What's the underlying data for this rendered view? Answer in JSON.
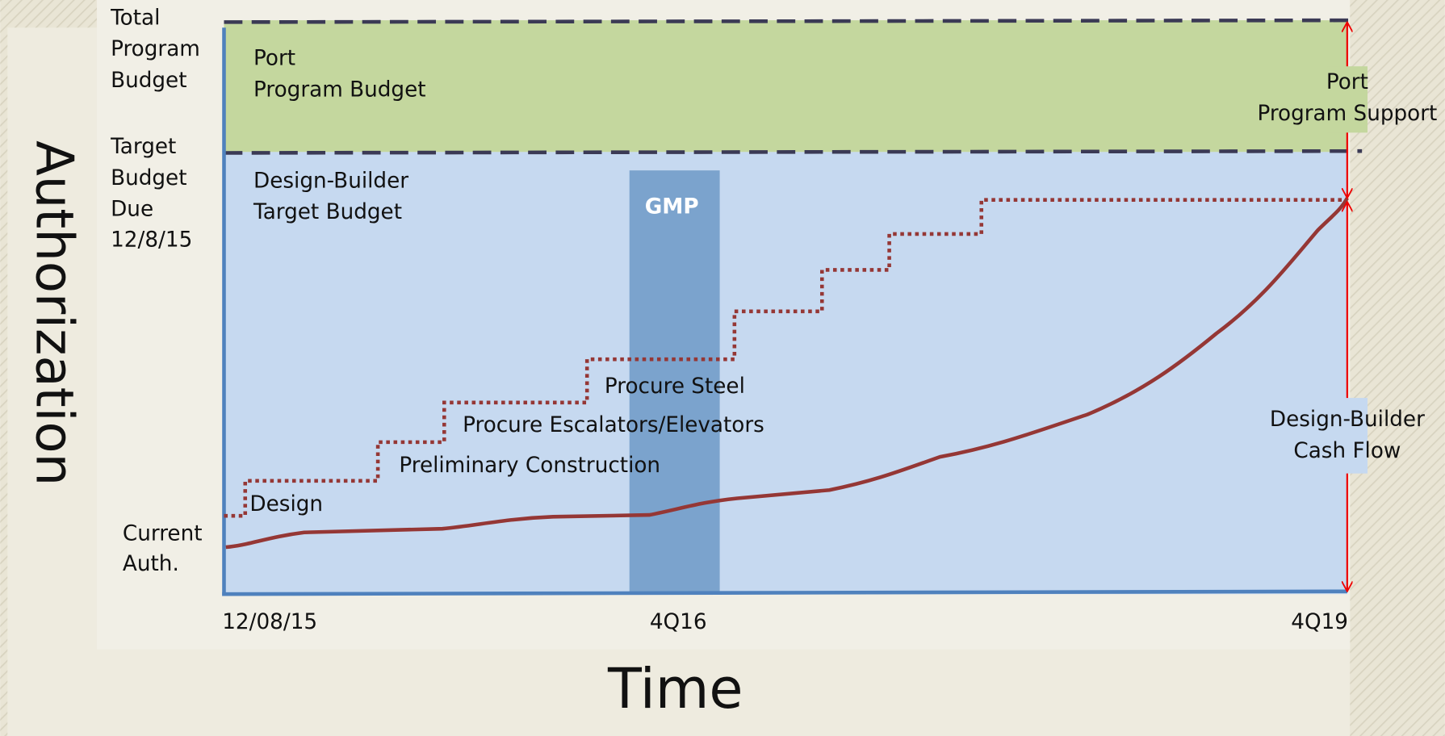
{
  "y_axis_title": "Authorization",
  "x_axis_title": "Time",
  "levels": {
    "total": [
      "Total",
      "Program",
      "Budget"
    ],
    "target": [
      "Target",
      "Budget",
      "Due",
      "12/8/15"
    ],
    "current": [
      "Current",
      "Auth."
    ]
  },
  "regions": {
    "port": [
      "Port",
      "Program Budget"
    ],
    "design_builder": [
      "Design-Builder",
      "Target Budget"
    ],
    "gmp": "GMP"
  },
  "milestones": [
    "Design",
    "Preliminary Construction",
    "Procure Escalators/Elevators",
    "Procure Steel"
  ],
  "right_labels": {
    "support": [
      "Port",
      "Program Support"
    ],
    "cash_flow": [
      "Design-Builder",
      "Cash Flow"
    ]
  },
  "x_labels": [
    "12/08/15",
    "4Q16",
    "4Q19"
  ]
}
